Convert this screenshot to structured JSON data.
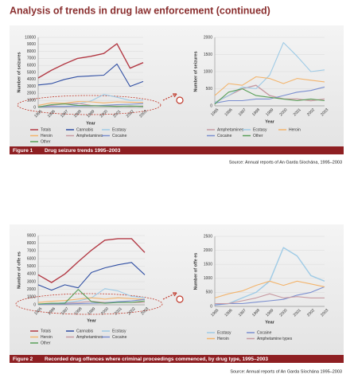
{
  "title": "Analysis of trends in drug law enforcement (continued)",
  "figures": [
    {
      "label": "Figure 1",
      "caption": "Drug seizure trends 1995–2003",
      "source": "Source: Annual reports of An Garda Síochána, 1995–2003"
    },
    {
      "label": "Figure 2",
      "caption": "Recorded drug offences where criminal proceedings commenced, by drug type, 1995–2003",
      "source": "Source: Annual reports of An Garda Síochána 1995–2003"
    }
  ],
  "chart_data": [
    {
      "type": "line",
      "x_label": "Year",
      "y_label": "Number of seizures",
      "categories": [
        "1995",
        "1996",
        "1997",
        "1998",
        "1999",
        "2000",
        "2001",
        "2002",
        "2003"
      ],
      "ylim": [
        0,
        10000
      ],
      "yticks": [
        0,
        1000,
        2000,
        3000,
        4000,
        5000,
        6000,
        7000,
        8000,
        9000,
        10000
      ],
      "series": [
        {
          "name": "Totals",
          "color": "#b33a45",
          "values": [
            4200,
            5300,
            6200,
            7000,
            7300,
            7700,
            9100,
            5600,
            6400
          ]
        },
        {
          "name": "Cannabis",
          "color": "#2f4ea3",
          "values": [
            3200,
            3400,
            4000,
            4400,
            4500,
            4600,
            6200,
            3000,
            3700
          ]
        },
        {
          "name": "Ecstasy",
          "color": "#9fcbe6",
          "values": [
            100,
            300,
            550,
            500,
            900,
            1850,
            1450,
            1000,
            1050
          ]
        },
        {
          "name": "Heroin",
          "color": "#f3b46c",
          "values": [
            300,
            650,
            600,
            850,
            800,
            650,
            800,
            750,
            700
          ]
        },
        {
          "name": "Amphetamines",
          "color": "#c79aa2",
          "values": [
            100,
            300,
            500,
            600,
            300,
            200,
            200,
            150,
            200
          ]
        },
        {
          "name": "Cocaine",
          "color": "#7b8fd0",
          "values": [
            80,
            150,
            150,
            200,
            200,
            300,
            400,
            450,
            550
          ]
        },
        {
          "name": "Other",
          "color": "#5aa05a",
          "values": [
            50,
            400,
            500,
            300,
            250,
            200,
            150,
            200,
            150
          ]
        }
      ]
    },
    {
      "type": "line",
      "x_label": "Year",
      "y_label": "Number of seizures",
      "categories": [
        "1995",
        "1996",
        "1997",
        "1998",
        "1999",
        "2000",
        "2001",
        "2002",
        "2003"
      ],
      "ylim": [
        0,
        2000
      ],
      "yticks": [
        0,
        500,
        1000,
        1500,
        2000
      ],
      "series": [
        {
          "name": "Amphetamines",
          "color": "#c79aa2",
          "values": [
            100,
            300,
            500,
            600,
            300,
            200,
            200,
            150,
            200
          ]
        },
        {
          "name": "Ecstasy",
          "color": "#9fcbe6",
          "values": [
            100,
            300,
            550,
            500,
            900,
            1850,
            1450,
            1000,
            1050
          ]
        },
        {
          "name": "Heroin",
          "color": "#f3b46c",
          "values": [
            300,
            650,
            600,
            850,
            800,
            650,
            800,
            750,
            700
          ]
        },
        {
          "name": "Cocaine",
          "color": "#7b8fd0",
          "values": [
            80,
            150,
            150,
            200,
            200,
            300,
            400,
            450,
            550
          ]
        },
        {
          "name": "Other",
          "color": "#5aa05a",
          "values": [
            50,
            400,
            500,
            300,
            250,
            200,
            150,
            200,
            150
          ]
        }
      ]
    },
    {
      "type": "line",
      "x_label": "Year",
      "y_label": "Number of offe es",
      "categories": [
        "1995",
        "1996",
        "1997",
        "1998",
        "1999",
        "2000",
        "2001",
        "2002",
        "2003"
      ],
      "ylim": [
        0,
        9000
      ],
      "yticks": [
        0,
        1000,
        2000,
        3000,
        4000,
        5000,
        6000,
        7000,
        8000,
        9000
      ],
      "series": [
        {
          "name": "Totals",
          "color": "#b33a45",
          "values": [
            3900,
            2900,
            4000,
            5600,
            7100,
            8400,
            8600,
            8600,
            6800
          ]
        },
        {
          "name": "Cannabis",
          "color": "#2f4ea3",
          "values": [
            2600,
            1900,
            2600,
            2200,
            4200,
            4800,
            5200,
            5500,
            3900
          ]
        },
        {
          "name": "Ecstasy",
          "color": "#9fcbe6",
          "values": [
            50,
            100,
            300,
            500,
            900,
            2100,
            1800,
            1100,
            900
          ]
        },
        {
          "name": "Heroin",
          "color": "#f3b46c",
          "values": [
            300,
            450,
            550,
            750,
            900,
            750,
            900,
            800,
            700
          ]
        },
        {
          "name": "Amphetamines",
          "color": "#c79aa2",
          "values": [
            100,
            100,
            200,
            300,
            450,
            300,
            350,
            300,
            300
          ]
        },
        {
          "name": "Cocaine",
          "color": "#7b8fd0",
          "values": [
            50,
            100,
            100,
            150,
            200,
            250,
            400,
            500,
            700
          ]
        },
        {
          "name": "Other",
          "color": "#5aa05a",
          "values": [
            100,
            200,
            200,
            2000,
            400,
            200,
            300,
            300,
            500
          ]
        }
      ]
    },
    {
      "type": "line",
      "x_label": "Year",
      "y_label": "Number of offe es",
      "categories": [
        "1995",
        "1996",
        "1997",
        "1998",
        "1999",
        "2000",
        "2001",
        "2002",
        "2003"
      ],
      "ylim": [
        0,
        2500
      ],
      "yticks": [
        0,
        500,
        1000,
        1500,
        2000,
        2500
      ],
      "series": [
        {
          "name": "Ecstasy",
          "color": "#9fcbe6",
          "values": [
            50,
            100,
            300,
            500,
            900,
            2100,
            1800,
            1100,
            900
          ]
        },
        {
          "name": "Cocaine",
          "color": "#7b8fd0",
          "values": [
            50,
            100,
            100,
            150,
            200,
            250,
            400,
            500,
            700
          ]
        },
        {
          "name": "Heroin",
          "color": "#f3b46c",
          "values": [
            300,
            450,
            550,
            750,
            900,
            750,
            900,
            800,
            700
          ]
        },
        {
          "name": "Amphetamine types",
          "color": "#c79aa2",
          "values": [
            100,
            100,
            200,
            300,
            450,
            300,
            350,
            300,
            300
          ]
        }
      ]
    }
  ]
}
